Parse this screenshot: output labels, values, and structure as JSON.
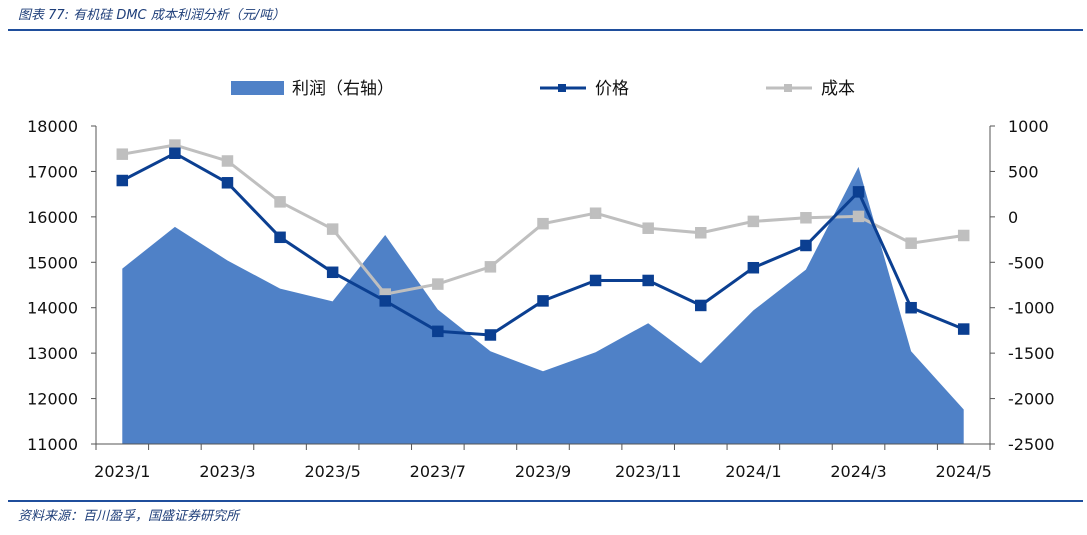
{
  "caption": "图表 77: 有机硅 DMC 成本利润分析（元/吨）",
  "source": "资料来源：百川盈孚，国盛证券研究所",
  "chart_data": {
    "type": "line",
    "categories": [
      "2023/1",
      "2023/2",
      "2023/3",
      "2023/4",
      "2023/5",
      "2023/6",
      "2023/7",
      "2023/8",
      "2023/9",
      "2023/10",
      "2023/11",
      "2023/12",
      "2024/1",
      "2024/2",
      "2024/3",
      "2024/4",
      "2024/5"
    ],
    "x_tick_labels": [
      "2023/1",
      "2023/3",
      "2023/5",
      "2023/7",
      "2023/9",
      "2023/11",
      "2024/1",
      "2024/3",
      "2024/5"
    ],
    "left_axis": {
      "ylim": [
        11000,
        18000
      ],
      "ticks": [
        "18000",
        "17000",
        "16000",
        "15000",
        "14000",
        "13000",
        "12000",
        "11000"
      ]
    },
    "right_axis": {
      "ylim": [
        -2500,
        1000
      ],
      "ticks": [
        "1000",
        "500",
        "0",
        "-500",
        "-1000",
        "-1500",
        "-2000",
        "-2500"
      ]
    },
    "series": [
      {
        "name": "利润（右轴）",
        "type": "area",
        "axis": "right",
        "color": "#4f81c7",
        "values": [
          -570,
          -110,
          -480,
          -790,
          -930,
          -200,
          -1020,
          -1480,
          -1700,
          -1490,
          -1170,
          -1610,
          -1030,
          -580,
          550,
          -1480,
          -2120
        ]
      },
      {
        "name": "价格",
        "type": "line",
        "axis": "left",
        "color": "#0b3f91",
        "values": [
          16800,
          17400,
          16750,
          15550,
          14780,
          14150,
          13480,
          13400,
          14150,
          14600,
          14600,
          14050,
          14880,
          15370,
          16550,
          14000,
          13530
        ]
      },
      {
        "name": "成本",
        "type": "line",
        "axis": "left",
        "color": "#bfbfbf",
        "values": [
          17380,
          17580,
          17230,
          16330,
          15730,
          14300,
          14520,
          14900,
          15850,
          16080,
          15750,
          15650,
          15900,
          15980,
          16010,
          15420,
          15590
        ]
      }
    ],
    "legend": {
      "position": "top-center"
    }
  }
}
